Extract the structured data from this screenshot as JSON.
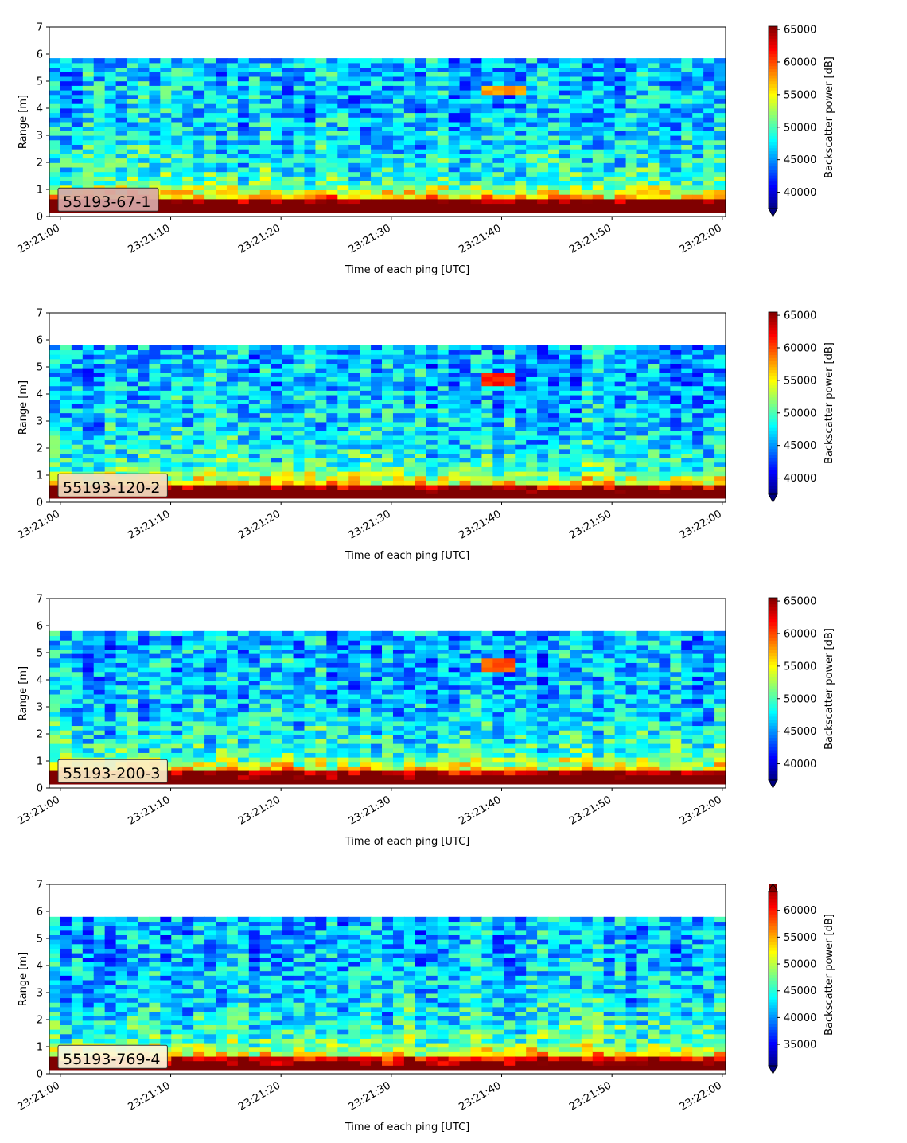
{
  "chart_data": [
    {
      "type": "heatmap",
      "label": "55193-67-1",
      "label_box_color": "#d8a8a8",
      "xlabel": "Time of each ping [UTC]",
      "ylabel": "Range [m]",
      "xtick_labels": [
        "23:21:00",
        "23:21:10",
        "23:21:20",
        "23:21:30",
        "23:21:40",
        "23:21:50",
        "23:22:00"
      ],
      "xlim_seconds": [
        -1,
        60.3
      ],
      "ylim": [
        0,
        7
      ],
      "yticks": [
        0,
        1,
        2,
        3,
        4,
        5,
        6,
        7
      ],
      "data_range_max": 5.85,
      "colormap": "jet",
      "colorbar": {
        "label": "Backscatter power [dB]",
        "ticks": [
          40000,
          45000,
          50000,
          55000,
          60000,
          65000
        ],
        "vmin": 37500,
        "vmax": 65500,
        "extend": "min"
      },
      "target": {
        "t": 40,
        "range": 4.65,
        "width_s": 3.8,
        "level": 0.72
      },
      "bottom_strength": 1.0
    },
    {
      "type": "heatmap",
      "label": "55193-120-2",
      "label_box_color": "#f4ddc0",
      "xlabel": "Time of each ping [UTC]",
      "ylabel": "Range [m]",
      "xtick_labels": [
        "23:21:00",
        "23:21:10",
        "23:21:20",
        "23:21:30",
        "23:21:40",
        "23:21:50",
        "23:22:00"
      ],
      "xlim_seconds": [
        -1,
        60.3
      ],
      "ylim": [
        0,
        7
      ],
      "yticks": [
        0,
        1,
        2,
        3,
        4,
        5,
        6,
        7
      ],
      "data_range_max": 5.8,
      "colormap": "jet",
      "colorbar": {
        "label": "Backscatter power [dB]",
        "ticks": [
          40000,
          45000,
          50000,
          55000,
          60000,
          65000
        ],
        "vmin": 37500,
        "vmax": 65500,
        "extend": "min"
      },
      "target": {
        "t": 40,
        "range": 4.5,
        "width_s": 3.0,
        "level": 0.86
      },
      "bottom_strength": 0.85
    },
    {
      "type": "heatmap",
      "label": "55193-200-3",
      "label_box_color": "#fbefc8",
      "xlabel": "Time of each ping [UTC]",
      "ylabel": "Range [m]",
      "xtick_labels": [
        "23:21:00",
        "23:21:10",
        "23:21:20",
        "23:21:30",
        "23:21:40",
        "23:21:50",
        "23:22:00"
      ],
      "xlim_seconds": [
        -1,
        60.3
      ],
      "ylim": [
        0,
        7
      ],
      "yticks": [
        0,
        1,
        2,
        3,
        4,
        5,
        6,
        7
      ],
      "data_range_max": 5.8,
      "colormap": "jet",
      "colorbar": {
        "label": "Backscatter power [dB]",
        "ticks": [
          40000,
          45000,
          50000,
          55000,
          60000,
          65000
        ],
        "vmin": 37500,
        "vmax": 65500,
        "extend": "min"
      },
      "target": {
        "t": 40,
        "range": 4.5,
        "width_s": 3.0,
        "level": 0.8
      },
      "bottom_strength": 0.75
    },
    {
      "type": "heatmap",
      "label": "55193-769-4",
      "label_box_color": "#fdf6dc",
      "xlabel": "Time of each ping [UTC]",
      "ylabel": "Range [m]",
      "xtick_labels": [
        "23:21:00",
        "23:21:10",
        "23:21:20",
        "23:21:30",
        "23:21:40",
        "23:21:50",
        "23:22:00"
      ],
      "xlim_seconds": [
        -1,
        60.3
      ],
      "ylim": [
        0,
        7
      ],
      "yticks": [
        0,
        1,
        2,
        3,
        4,
        5,
        6,
        7
      ],
      "data_range_max": 5.8,
      "colormap": "jet",
      "colorbar": {
        "label": "Backscatter power [dB]",
        "ticks": [
          35000,
          40000,
          45000,
          50000,
          55000,
          60000
        ],
        "vmin": 31000,
        "vmax": 65000,
        "extend": "both"
      },
      "target": null,
      "bottom_strength": 0.65
    }
  ]
}
